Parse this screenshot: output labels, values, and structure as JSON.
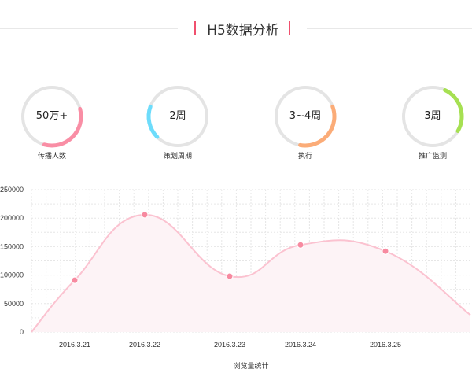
{
  "header": {
    "title": "H5数据分析",
    "accent": "#f0506e"
  },
  "stats": [
    {
      "value": "50万+",
      "label": "传播人数",
      "color": "#f98ea5",
      "arc": [
        -15,
        105
      ]
    },
    {
      "value": "2周",
      "label": "策划周期",
      "color": "#6ddcfb",
      "arc": [
        135,
        200
      ]
    },
    {
      "value": "3~4周",
      "label": "执行",
      "color": "#fbac78",
      "arc": [
        -20,
        100
      ]
    },
    {
      "value": "3周",
      "label": "推广监测",
      "color": "#a6e052",
      "arc": [
        -65,
        30
      ]
    }
  ],
  "chart_data": {
    "type": "area",
    "title": "",
    "xlabel": "浏览量统计",
    "ylabel": "",
    "ylim": [
      0,
      250000
    ],
    "yticks": [
      "0",
      "50000",
      "100000",
      "150000",
      "200000",
      "250000"
    ],
    "categories": [
      "2016.3.21",
      "2016.3.22",
      "2016.3.23",
      "2016.3.24",
      "2016.3.25"
    ],
    "values": [
      91000,
      206000,
      98000,
      153000,
      142000
    ],
    "line_start": 0,
    "line_end": 30000,
    "grid": true,
    "line_color": "#fbc2d0",
    "point_color": "#f78aa0",
    "fill_color": "#fdf3f6"
  }
}
